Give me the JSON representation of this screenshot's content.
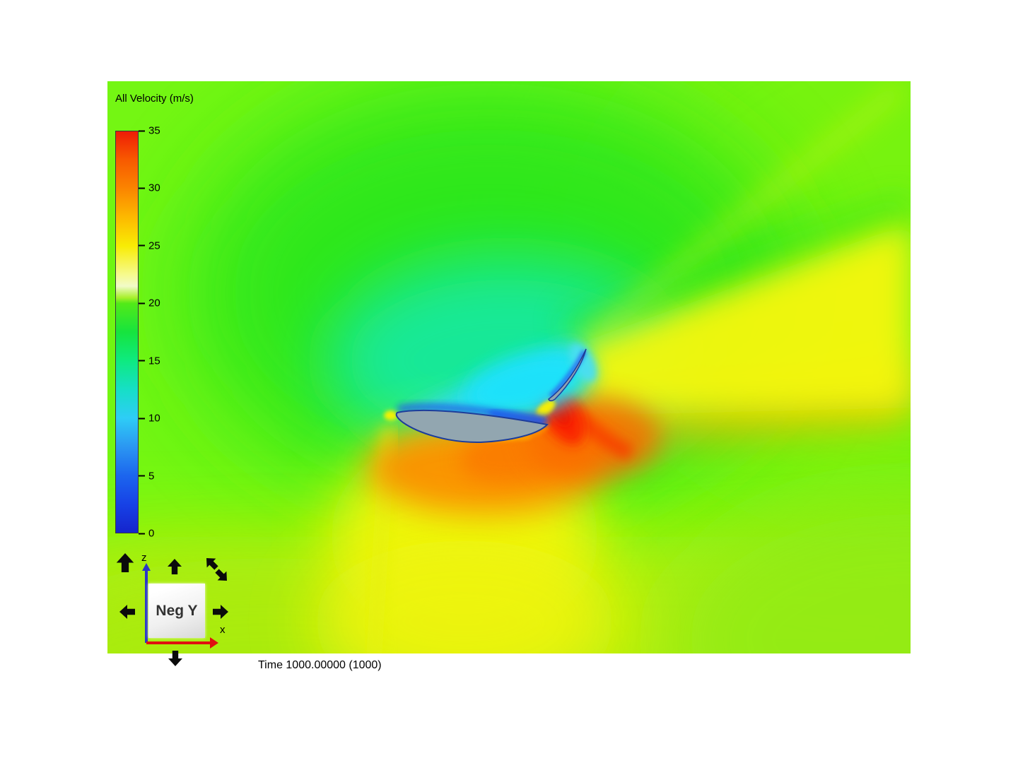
{
  "viewer": {
    "legend": {
      "title": "All Velocity (m/s)",
      "min": 0,
      "max": 35,
      "ticks": [
        35,
        30,
        25,
        20,
        15,
        10,
        5,
        0
      ],
      "colorbar_stops": [
        {
          "value": 35,
          "color": "#ee1c06"
        },
        {
          "value": 32.5,
          "color": "#f85a00"
        },
        {
          "value": 30,
          "color": "#fb8500"
        },
        {
          "value": 27.5,
          "color": "#fdb900"
        },
        {
          "value": 25,
          "color": "#f8ec04"
        },
        {
          "value": 22.5,
          "color": "#f6fa8e"
        },
        {
          "value": 21.5,
          "color": "#f2fbc8"
        },
        {
          "value": 20.5,
          "color": "#a8f02c"
        },
        {
          "value": 20,
          "color": "#52ea18"
        },
        {
          "value": 17.5,
          "color": "#16e43e"
        },
        {
          "value": 15,
          "color": "#0eea80"
        },
        {
          "value": 12.5,
          "color": "#16dfc6"
        },
        {
          "value": 10,
          "color": "#2ecdf6"
        },
        {
          "value": 7.5,
          "color": "#2b97f2"
        },
        {
          "value": 5,
          "color": "#1c66ee"
        },
        {
          "value": 2.5,
          "color": "#1742e6"
        },
        {
          "value": 0,
          "color": "#1524cc"
        }
      ]
    },
    "orientation_widget": {
      "view_label": "Neg Y",
      "axis_z_label": "z",
      "axis_x_label": "x",
      "axis_z_color": "#2a36c8",
      "axis_x_color": "#e01010",
      "control_icons": [
        "reset-view-up-arrow-icon",
        "pan-up-arrow-icon",
        "rotate-diagonal-up-left-arrow-icon",
        "rotate-diagonal-down-right-arrow-icon",
        "pan-left-arrow-icon",
        "pan-right-arrow-icon",
        "pan-down-arrow-icon"
      ]
    },
    "status": {
      "time_label": "Time 1000.00000 (1000)"
    },
    "field_colors": {
      "free_stream_green": "#74f613",
      "slow_region_teal": "#12e9a2",
      "slow_region_cyan": "#22e2fe",
      "boundary_layer_blue": "#1e58f0",
      "wake_yellow": "#f6f70e",
      "accelerated_orange": "#fc8c00",
      "max_speed_red": "#fa2306",
      "airfoil_gray": "#92a6b0"
    }
  }
}
